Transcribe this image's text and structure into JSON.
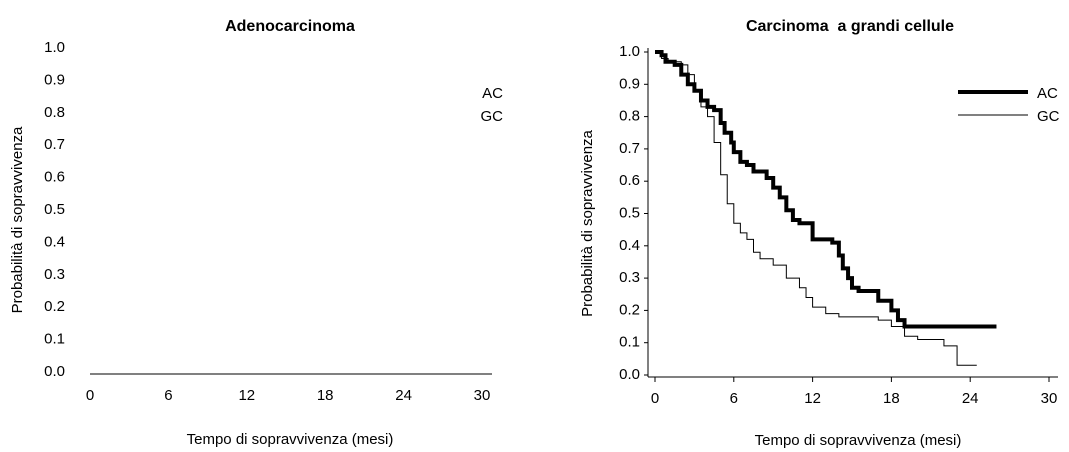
{
  "chart_data": [
    {
      "type": "step",
      "title": "Adenocarcinoma",
      "x_label": "Tempo di sopravvivenza (mesi)",
      "y_label": "Probabilità di sopravvivenza",
      "xlim": [
        0,
        30
      ],
      "xticks": [
        0,
        6,
        12,
        18,
        24,
        30
      ],
      "ylim": [
        0,
        1
      ],
      "yticks": [
        {
          "value": 0,
          "label": "0.0"
        },
        0.1,
        0.2,
        0.3,
        0.4,
        0.5,
        0.6,
        0.7,
        0.8,
        0.9,
        {
          "value": 1,
          "label": "1.0"
        }
      ],
      "legend": "upper right",
      "series": [
        {
          "name": "AC",
          "color": "#000000",
          "x": [],
          "values": []
        },
        {
          "name": "GC",
          "color": "#000000",
          "x": [],
          "values": []
        }
      ]
    },
    {
      "type": "step",
      "title": "Carcinoma  a grandi cellule",
      "x_label": "Tempo di sopravvivenza (mesi)",
      "y_label": "Probabilità di sopravvivenza",
      "xlim": [
        0,
        30
      ],
      "xticks": [
        0,
        6,
        12,
        18,
        24,
        30
      ],
      "ylim": [
        0,
        1
      ],
      "yticks": [
        {
          "value": 0,
          "label": "0.0"
        },
        0.1,
        0.2,
        0.3,
        0.4,
        0.5,
        0.6,
        0.7,
        0.8,
        0.9,
        {
          "value": 1,
          "label": "1.0"
        }
      ],
      "legend": "upper right",
      "series": [
        {
          "name": "AC",
          "color": "#000000",
          "x": [
            0,
            0.5,
            0.8,
            1.5,
            2,
            2.5,
            3,
            3.5,
            4,
            4.5,
            5,
            5.3,
            5.8,
            6,
            6.5,
            7,
            7.5,
            8.5,
            9,
            9.5,
            10,
            10.5,
            11,
            12,
            13.5,
            14,
            14.3,
            14.7,
            15,
            15.5,
            17,
            18,
            18.5,
            19,
            26
          ],
          "values": [
            1.0,
            0.99,
            0.97,
            0.96,
            0.93,
            0.9,
            0.88,
            0.85,
            0.83,
            0.82,
            0.78,
            0.75,
            0.72,
            0.69,
            0.66,
            0.65,
            0.63,
            0.61,
            0.58,
            0.55,
            0.51,
            0.48,
            0.47,
            0.42,
            0.41,
            0.37,
            0.33,
            0.3,
            0.27,
            0.26,
            0.23,
            0.2,
            0.17,
            0.15,
            0.15
          ]
        },
        {
          "name": "GC",
          "color": "#000000",
          "x": [
            0,
            0.5,
            1,
            2,
            2.5,
            3,
            3.5,
            4,
            4.5,
            5,
            5.5,
            6,
            6.5,
            7,
            7.5,
            8,
            9,
            10,
            11,
            11.5,
            12,
            13,
            14,
            17,
            18,
            19,
            20,
            22,
            23,
            24.5
          ],
          "values": [
            1.0,
            0.98,
            0.97,
            0.96,
            0.93,
            0.88,
            0.83,
            0.8,
            0.72,
            0.62,
            0.53,
            0.47,
            0.44,
            0.42,
            0.38,
            0.36,
            0.34,
            0.3,
            0.27,
            0.24,
            0.21,
            0.19,
            0.18,
            0.17,
            0.15,
            0.12,
            0.11,
            0.09,
            0.03,
            0.03
          ]
        }
      ]
    }
  ]
}
